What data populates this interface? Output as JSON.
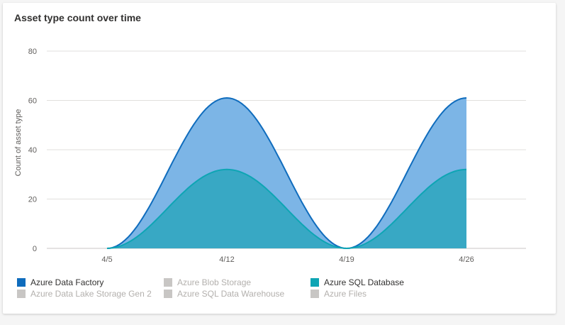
{
  "card": {
    "title": "Asset type count over time"
  },
  "chart_data": {
    "type": "area",
    "title": "Asset type count over time",
    "xlabel": "",
    "ylabel": "Count of asset type",
    "x": [
      "4/5",
      "4/12",
      "4/19",
      "4/26"
    ],
    "ylim": [
      0,
      80
    ],
    "yticks": [
      0,
      20,
      40,
      60,
      80
    ],
    "grid": true,
    "stacked": true,
    "legend_position": "bottom",
    "series": [
      {
        "name": "Azure SQL Database",
        "values": [
          0,
          32,
          0,
          32
        ],
        "color": "#0ea5b4",
        "fill": "#38a8c4"
      },
      {
        "name": "Azure Data Factory",
        "values": [
          0,
          29,
          0,
          29
        ],
        "color": "#0f6cbd",
        "fill": "#7cb5e6"
      }
    ]
  },
  "legend": {
    "items": [
      {
        "label": "Azure Data Factory",
        "color": "#0f6cbd",
        "enabled": true
      },
      {
        "label": "Azure Data Lake Storage Gen 2",
        "color": "#c8c6c4",
        "enabled": false
      },
      {
        "label": "Azure Blob Storage",
        "color": "#c8c6c4",
        "enabled": false
      },
      {
        "label": "Azure SQL Data Warehouse",
        "color": "#c8c6c4",
        "enabled": false
      },
      {
        "label": "Azure SQL Database",
        "color": "#0ea5b4",
        "enabled": true
      },
      {
        "label": "Azure Files",
        "color": "#c8c6c4",
        "enabled": false
      }
    ]
  }
}
